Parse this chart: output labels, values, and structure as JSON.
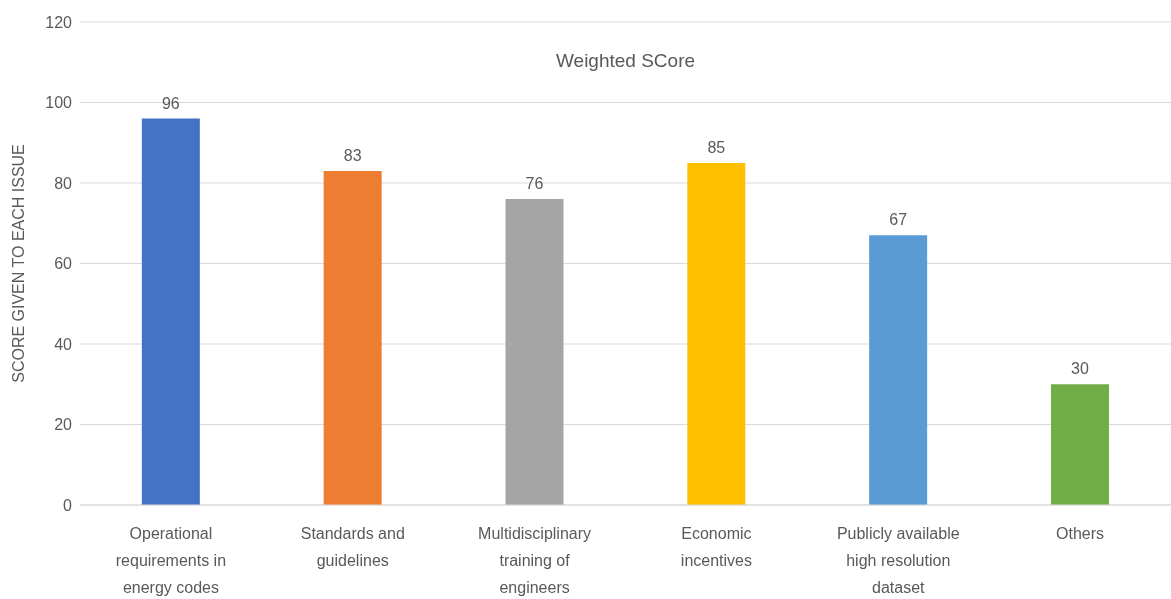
{
  "chart_data": {
    "type": "bar",
    "title": "Weighted SCore",
    "ylabel": "SCORE GIVEN TO EACH ISSUE",
    "categories": [
      "Operational requirements in energy codes",
      "Standards and guidelines",
      "Multidisciplinary training of engineers",
      "Economic incentives",
      "Publicly available high resolution dataset",
      "Others"
    ],
    "values": [
      96,
      83,
      76,
      85,
      67,
      30
    ],
    "colors": [
      "#4472c4",
      "#ed7d31",
      "#a5a5a5",
      "#ffc000",
      "#5b9bd5",
      "#70ad47"
    ],
    "ylim": [
      0,
      120
    ],
    "yticks": [
      0,
      20,
      40,
      60,
      80,
      100,
      120
    ],
    "grid": "y",
    "data_labels": true,
    "legend": false
  }
}
